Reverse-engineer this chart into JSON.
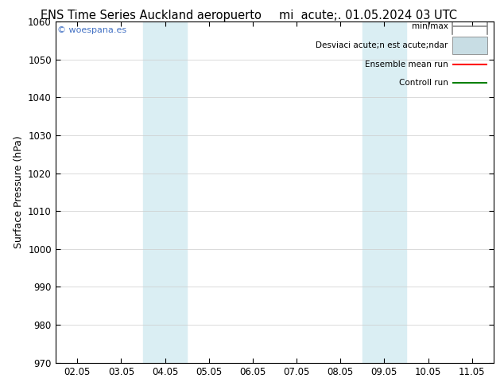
{
  "title_left": "ENS Time Series Auckland aeropuerto",
  "title_right": "mi  acute;. 01.05.2024 03 UTC",
  "ylabel": "Surface Pressure (hPa)",
  "ylim": [
    970,
    1060
  ],
  "yticks": [
    970,
    980,
    990,
    1000,
    1010,
    1020,
    1030,
    1040,
    1050,
    1060
  ],
  "xtick_labels": [
    "02.05",
    "03.05",
    "04.05",
    "05.05",
    "06.05",
    "07.05",
    "08.05",
    "09.05",
    "10.05",
    "11.05"
  ],
  "xtick_positions": [
    0,
    1,
    2,
    3,
    4,
    5,
    6,
    7,
    8,
    9
  ],
  "shaded_regions": [
    {
      "xstart": 2.0,
      "xend": 3.0,
      "color": "#daeef3"
    },
    {
      "xstart": 7.0,
      "xend": 8.0,
      "color": "#daeef3"
    }
  ],
  "watermark": "© woespana.es",
  "watermark_color": "#4472c4",
  "legend_items": [
    {
      "label": "min/max",
      "color": "#888888",
      "style": "minmax"
    },
    {
      "label": "Desviaci acute;n est acute;ndar",
      "color": "#c8dde4",
      "style": "box"
    },
    {
      "label": "Ensemble mean run",
      "color": "#ff0000",
      "style": "line"
    },
    {
      "label": "Controll run",
      "color": "#008000",
      "style": "line"
    }
  ],
  "bg_color": "#ffffff",
  "plot_bg_color": "#ffffff",
  "grid_color": "#cccccc",
  "border_color": "#000000",
  "title_fontsize": 10.5,
  "axis_label_fontsize": 9,
  "tick_fontsize": 8.5,
  "legend_fontsize": 7.5
}
